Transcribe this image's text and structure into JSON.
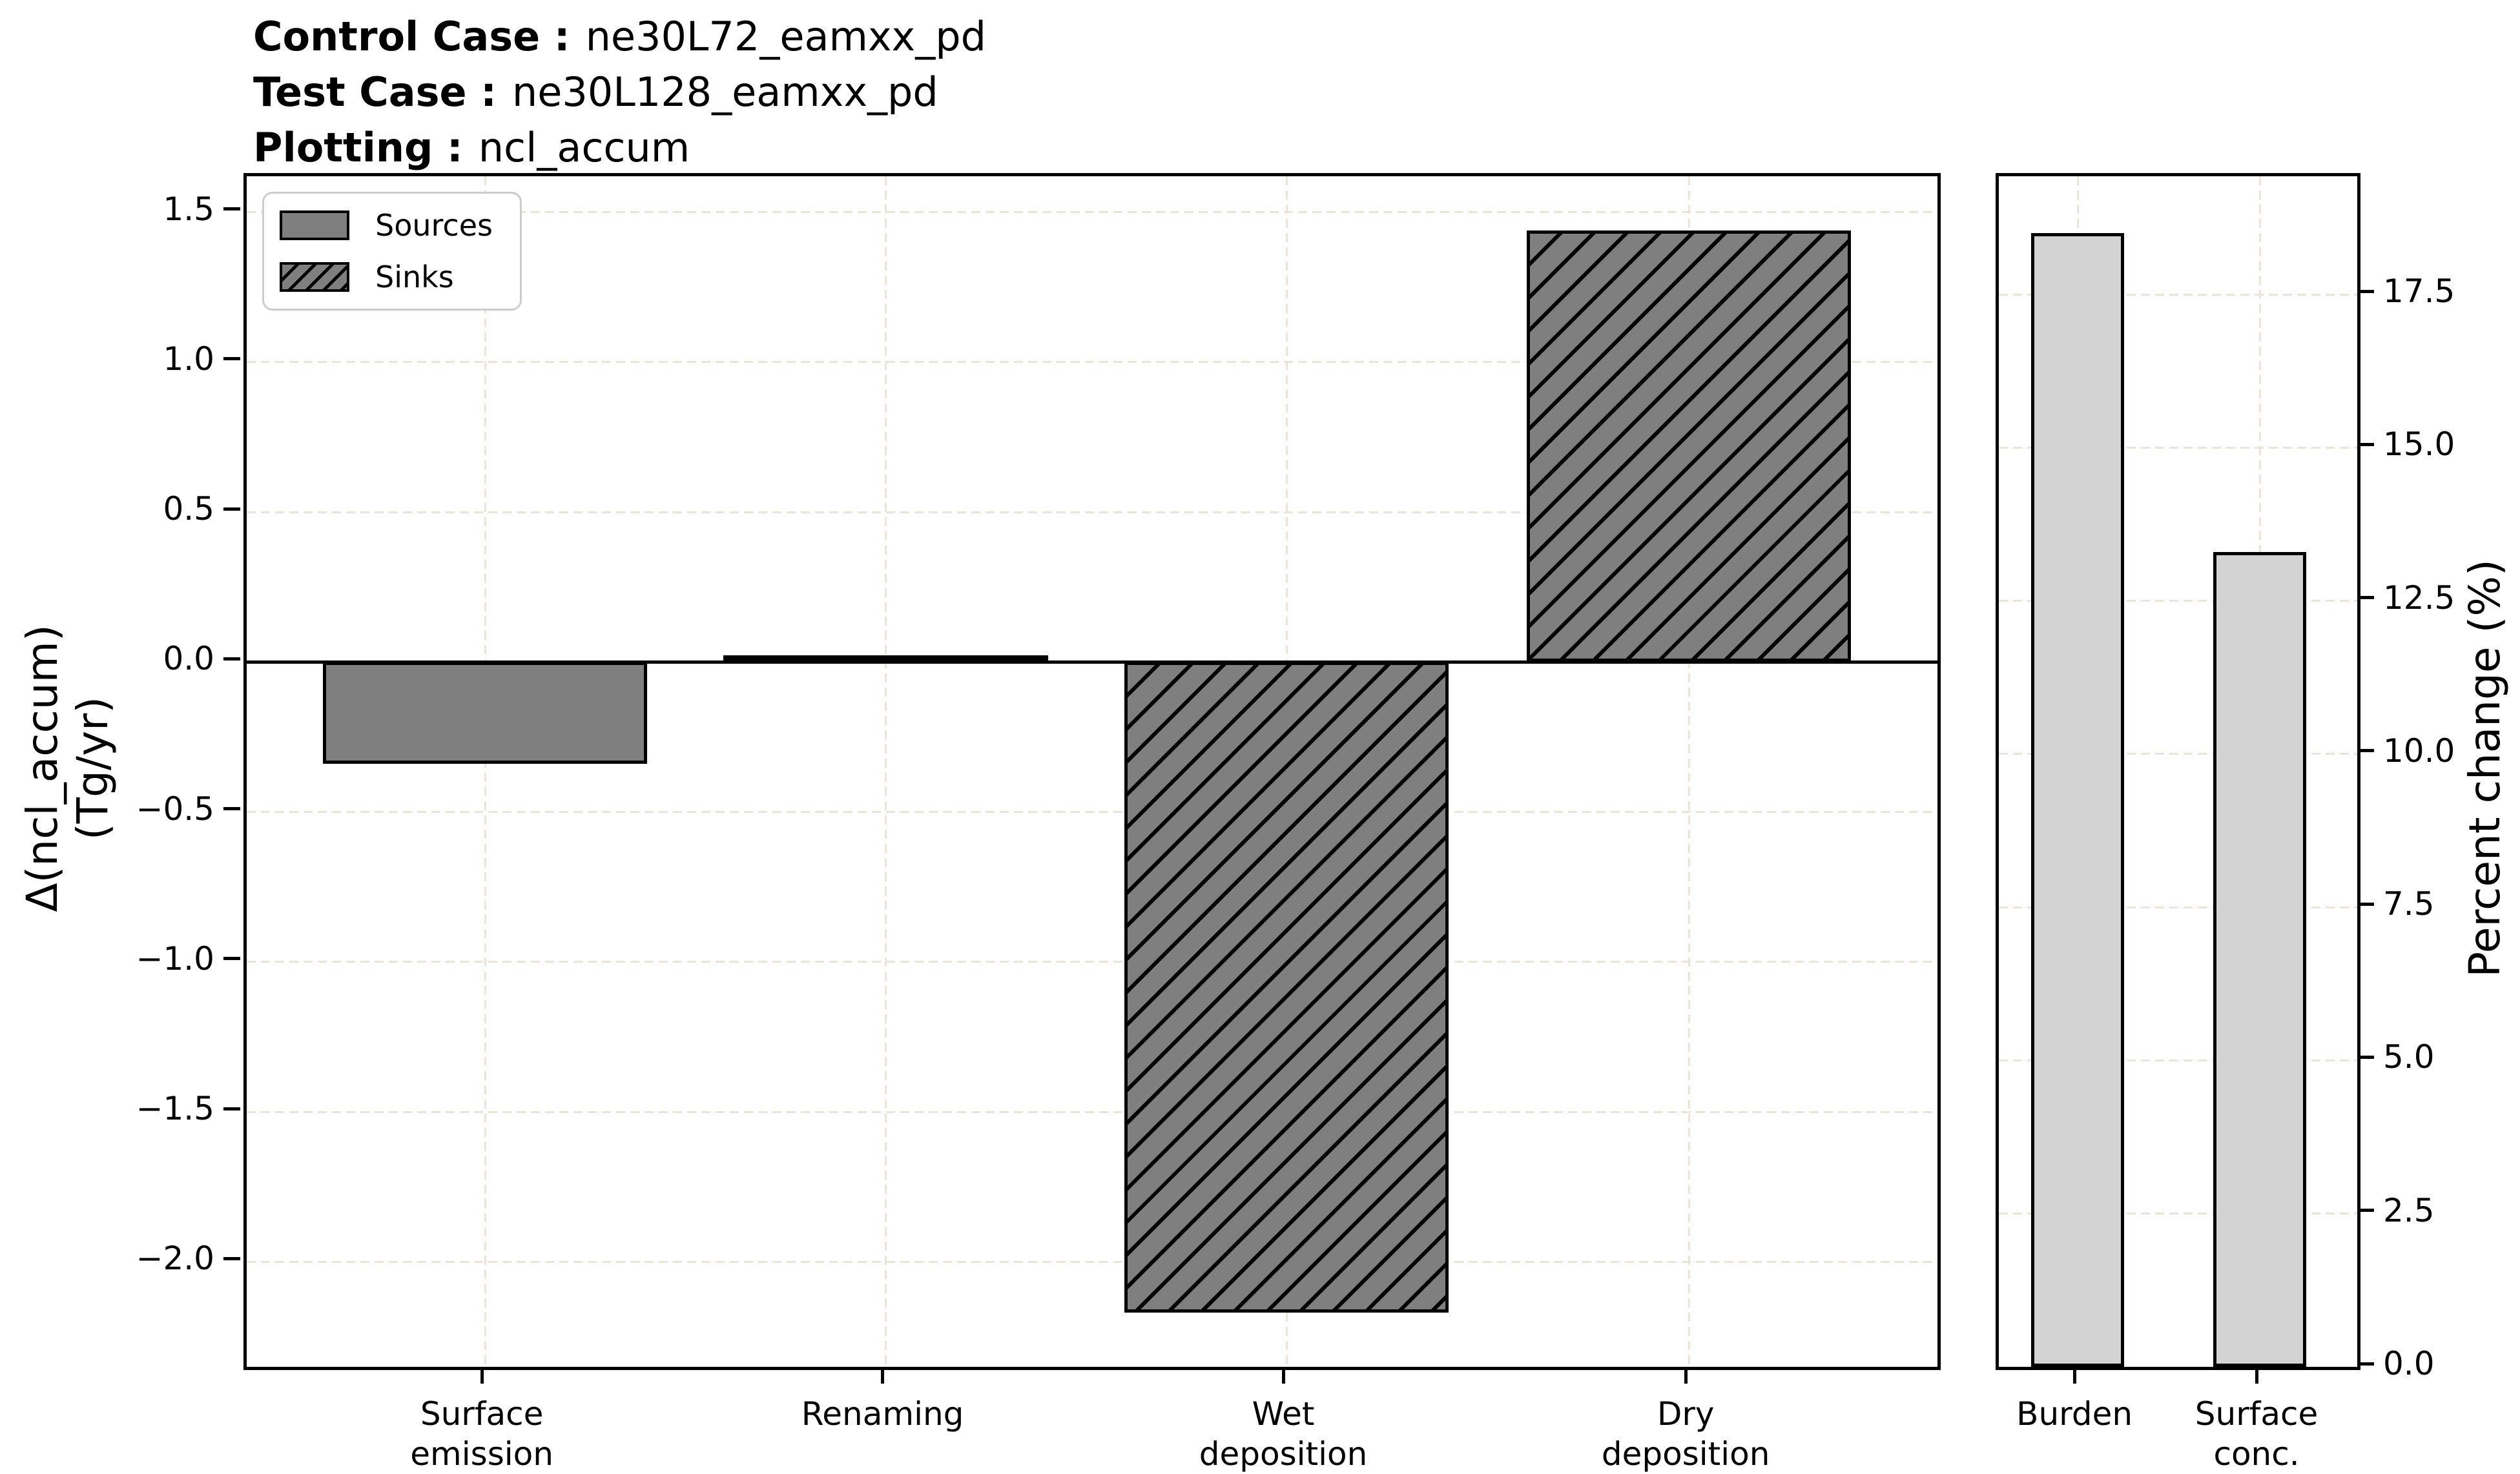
{
  "header": {
    "lines": [
      {
        "label": "Control Case :",
        "value": "ne30L72_eamxx_pd"
      },
      {
        "label": "Test Case :",
        "value": "ne30L128_eamxx_pd"
      },
      {
        "label": "Plotting :",
        "value": "ncl_accum"
      }
    ]
  },
  "chart_data": [
    {
      "type": "bar",
      "panel": "flux-budget",
      "categories": [
        "Surface\nemission",
        "Renaming",
        "Wet\ndeposition",
        "Dry\ndeposition"
      ],
      "series": [
        {
          "name": "Sources",
          "style": "solid",
          "values": [
            -0.34,
            0.01,
            null,
            null
          ]
        },
        {
          "name": "Sinks",
          "style": "hatched",
          "values": [
            null,
            null,
            -2.17,
            1.44
          ]
        }
      ],
      "ylabel_lines": [
        "Δ(ncl_accum)",
        "(Tg/yr)"
      ],
      "xlabel": "",
      "ylim": [
        -2.35,
        1.62
      ],
      "yticks": [
        1.5,
        1.0,
        0.5,
        0.0,
        -0.5,
        -1.0,
        -1.5,
        -2.0
      ],
      "grid": true,
      "zero_line": true,
      "legend": {
        "location": "upper left",
        "items": [
          {
            "label": "Sources",
            "swatch": "solid"
          },
          {
            "label": "Sinks",
            "swatch": "hatched"
          }
        ]
      }
    },
    {
      "type": "bar",
      "panel": "percent-change",
      "categories": [
        "Burden",
        "Surface\nconc."
      ],
      "series": [
        {
          "name": "Percent change",
          "style": "light",
          "values": [
            18.5,
            13.3
          ]
        }
      ],
      "ylabel": "Percent change (%)",
      "xlabel": "",
      "ylim": [
        0,
        19.43
      ],
      "yticks": [
        0.0,
        2.5,
        5.0,
        7.5,
        10.0,
        12.5,
        15.0,
        17.5
      ],
      "grid": true,
      "zero_line": false
    }
  ],
  "colors": {
    "bar_gray": "#7f7f7f",
    "bar_lightgray": "#d3d3d3",
    "edge": "#000000",
    "grid_line": "#eae4da",
    "legend_border": "#cccccc",
    "background": "#ffffff",
    "text": "#000000"
  }
}
